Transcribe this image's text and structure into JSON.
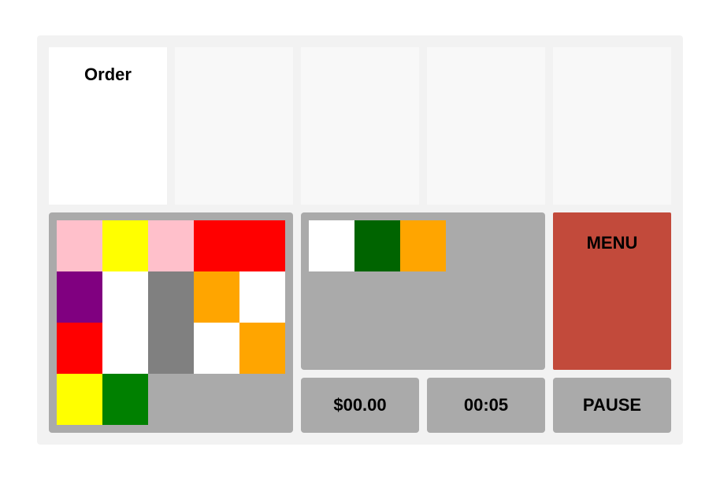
{
  "order_title": "Order",
  "order_slots": 5,
  "palette": {
    "pink": "#ffc0cb",
    "yellow": "#ffff00",
    "red": "#ff0000",
    "purple": "#800080",
    "white": "#ffffff",
    "gray": "#808080",
    "orange": "#ffa500",
    "green": "#008000",
    "dark_green": "#006400"
  },
  "bin_grid": [
    [
      "pink",
      "yellow",
      "pink",
      "red",
      "red"
    ],
    [
      "purple",
      "white",
      "gray",
      "orange",
      "white"
    ],
    [
      "red",
      "white",
      "gray",
      "white",
      "orange"
    ],
    [
      "yellow",
      "green",
      null,
      null,
      null
    ]
  ],
  "current_tray": [
    "white",
    "dark_green",
    "orange"
  ],
  "menu": {
    "label": "MENU",
    "color": "#c24a3b"
  },
  "status": {
    "money": "$00.00",
    "timer": "00:05",
    "pause_label": "PAUSE"
  }
}
